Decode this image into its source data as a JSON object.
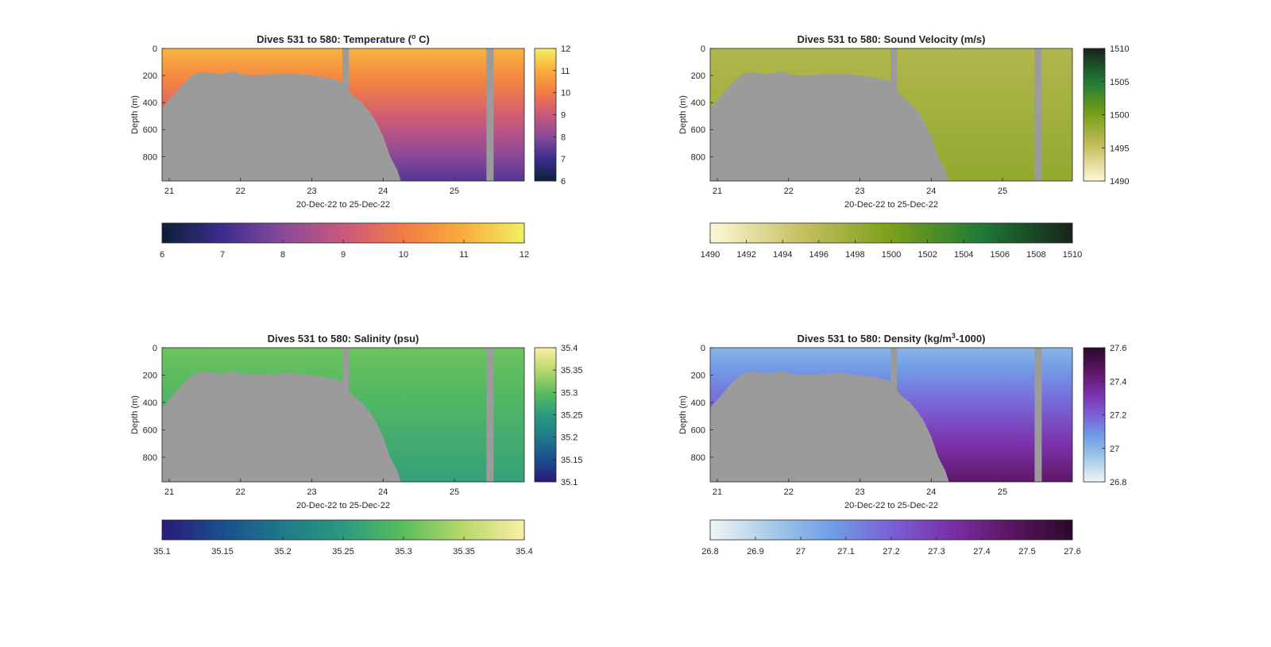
{
  "figure": {
    "background": "#ffffff",
    "mask_color": "#9b9b9b"
  },
  "chart_data": [
    {
      "type": "heatmap",
      "title": "Dives 531 to 580: Temperature (",
      "title_sup": "o",
      "title_tail": " C)",
      "xlabel": "20-Dec-22 to 25-Dec-22",
      "ylabel": "Depth (m)",
      "xlim": [
        20.9,
        25.98
      ],
      "ylim": [
        0,
        980
      ],
      "y_reversed": true,
      "xticks": [
        21,
        22,
        23,
        24,
        25
      ],
      "yticks": [
        0,
        200,
        400,
        600,
        800
      ],
      "colorbar": {
        "min": 6,
        "max": 12,
        "ticks": [
          6,
          7,
          8,
          9,
          10,
          11,
          12
        ],
        "colors": [
          "#0b1f38",
          "#3b2d8f",
          "#8a4a99",
          "#c9587d",
          "#f27c45",
          "#f9ad3c",
          "#f0f060"
        ]
      },
      "colorbar_h_ticks": [
        6,
        7,
        8,
        9,
        10,
        11,
        12
      ],
      "surface_value": 11.1,
      "deep_value": 7.3,
      "gaps": [
        [
          23.43,
          23.52
        ],
        [
          25.45,
          25.55
        ]
      ],
      "seabed": {
        "x": [
          20.9,
          21.0,
          21.1,
          21.2,
          21.3,
          21.4,
          21.5,
          21.7,
          21.9,
          22.1,
          22.4,
          22.7,
          23.0,
          23.2,
          23.4,
          23.5,
          23.6,
          23.7,
          23.8,
          23.9,
          24.0,
          24.1,
          24.2,
          24.25
        ],
        "depth": [
          440,
          380,
          320,
          260,
          210,
          180,
          175,
          190,
          170,
          200,
          195,
          185,
          200,
          215,
          240,
          300,
          360,
          400,
          460,
          540,
          650,
          800,
          900,
          980
        ]
      }
    },
    {
      "type": "heatmap",
      "title": "Dives 531 to 580: Sound Velocity (m/s)",
      "xlabel": "20-Dec-22 to 25-Dec-22",
      "ylabel": "Depth (m)",
      "xlim": [
        20.9,
        25.98
      ],
      "ylim": [
        0,
        980
      ],
      "y_reversed": true,
      "xticks": [
        21,
        22,
        23,
        24,
        25
      ],
      "yticks": [
        0,
        200,
        400,
        600,
        800
      ],
      "colorbar": {
        "min": 1490,
        "max": 1510,
        "ticks": [
          1490,
          1495,
          1500,
          1505,
          1510
        ],
        "colors": [
          "#fdf8d8",
          "#c8c062",
          "#7aa019",
          "#1f7a37",
          "#18231a"
        ]
      },
      "colorbar_h_ticks": [
        1490,
        1492,
        1494,
        1496,
        1498,
        1500,
        1502,
        1504,
        1506,
        1508,
        1510
      ],
      "surface_value": 1496.5,
      "deep_value": 1498.5,
      "gaps": [
        [
          23.43,
          23.52
        ],
        [
          25.45,
          25.55
        ]
      ],
      "seabed": {
        "x": [
          20.9,
          21.0,
          21.1,
          21.2,
          21.3,
          21.4,
          21.5,
          21.7,
          21.9,
          22.1,
          22.4,
          22.7,
          23.0,
          23.2,
          23.4,
          23.5,
          23.6,
          23.7,
          23.8,
          23.9,
          24.0,
          24.1,
          24.2,
          24.25
        ],
        "depth": [
          440,
          380,
          320,
          260,
          210,
          180,
          175,
          190,
          170,
          200,
          195,
          185,
          200,
          215,
          240,
          300,
          360,
          400,
          460,
          540,
          650,
          800,
          900,
          980
        ]
      }
    },
    {
      "type": "heatmap",
      "title": "Dives 531 to 580: Salinity (psu)",
      "xlabel": "20-Dec-22 to 25-Dec-22",
      "ylabel": "Depth (m)",
      "xlim": [
        20.9,
        25.98
      ],
      "ylim": [
        0,
        980
      ],
      "y_reversed": true,
      "xticks": [
        21,
        22,
        23,
        24,
        25
      ],
      "yticks": [
        0,
        200,
        400,
        600,
        800
      ],
      "colorbar": {
        "min": 35.1,
        "max": 35.4,
        "ticks": [
          35.1,
          35.15,
          35.2,
          35.25,
          35.3,
          35.35,
          35.4
        ],
        "colors": [
          "#2b1a7a",
          "#1a4e8e",
          "#1f7a8a",
          "#2a9a7e",
          "#5bbd5e",
          "#b9d86a",
          "#f9efa6"
        ]
      },
      "colorbar_h_ticks": [
        35.1,
        35.15,
        35.2,
        35.25,
        35.3,
        35.35,
        35.4
      ],
      "surface_value": 35.31,
      "deep_value": 35.26,
      "gaps": [
        [
          23.43,
          23.52
        ],
        [
          25.45,
          25.55
        ]
      ],
      "seabed": {
        "x": [
          20.9,
          21.0,
          21.1,
          21.2,
          21.3,
          21.4,
          21.5,
          21.7,
          21.9,
          22.1,
          22.4,
          22.7,
          23.0,
          23.2,
          23.4,
          23.5,
          23.6,
          23.7,
          23.8,
          23.9,
          24.0,
          24.1,
          24.2,
          24.25
        ],
        "depth": [
          440,
          380,
          320,
          260,
          210,
          180,
          175,
          190,
          170,
          200,
          195,
          185,
          200,
          215,
          240,
          300,
          360,
          400,
          460,
          540,
          650,
          800,
          900,
          980
        ]
      }
    },
    {
      "type": "heatmap",
      "title": "Dives 531 to 580: Density (kg/m",
      "title_sup": "3",
      "title_tail": "-1000)",
      "xlabel": "20-Dec-22 to 25-Dec-22",
      "ylabel": "Depth (m)",
      "xlim": [
        20.9,
        25.98
      ],
      "ylim": [
        0,
        980
      ],
      "y_reversed": true,
      "xticks": [
        21,
        22,
        23,
        24,
        25
      ],
      "yticks": [
        0,
        200,
        400,
        600,
        800
      ],
      "colorbar": {
        "min": 26.8,
        "max": 27.6,
        "ticks": [
          26.8,
          27,
          27.2,
          27.4,
          27.6
        ],
        "colors": [
          "#f0f6f6",
          "#a8cbe8",
          "#6f9fe6",
          "#7a60d6",
          "#7a2fa6",
          "#5a1560",
          "#2a0a2a"
        ]
      },
      "colorbar_h_ticks": [
        26.8,
        26.9,
        27,
        27.1,
        27.2,
        27.3,
        27.4,
        27.5,
        27.6
      ],
      "surface_value": 27.0,
      "deep_value": 27.45,
      "gaps": [
        [
          23.43,
          23.52
        ],
        [
          25.45,
          25.55
        ]
      ],
      "seabed": {
        "x": [
          20.9,
          21.0,
          21.1,
          21.2,
          21.3,
          21.4,
          21.5,
          21.7,
          21.9,
          22.1,
          22.4,
          22.7,
          23.0,
          23.2,
          23.4,
          23.5,
          23.6,
          23.7,
          23.8,
          23.9,
          24.0,
          24.1,
          24.2,
          24.25
        ],
        "depth": [
          440,
          380,
          320,
          260,
          210,
          180,
          175,
          190,
          170,
          200,
          195,
          185,
          200,
          215,
          240,
          300,
          360,
          400,
          460,
          540,
          650,
          800,
          900,
          980
        ]
      }
    }
  ]
}
